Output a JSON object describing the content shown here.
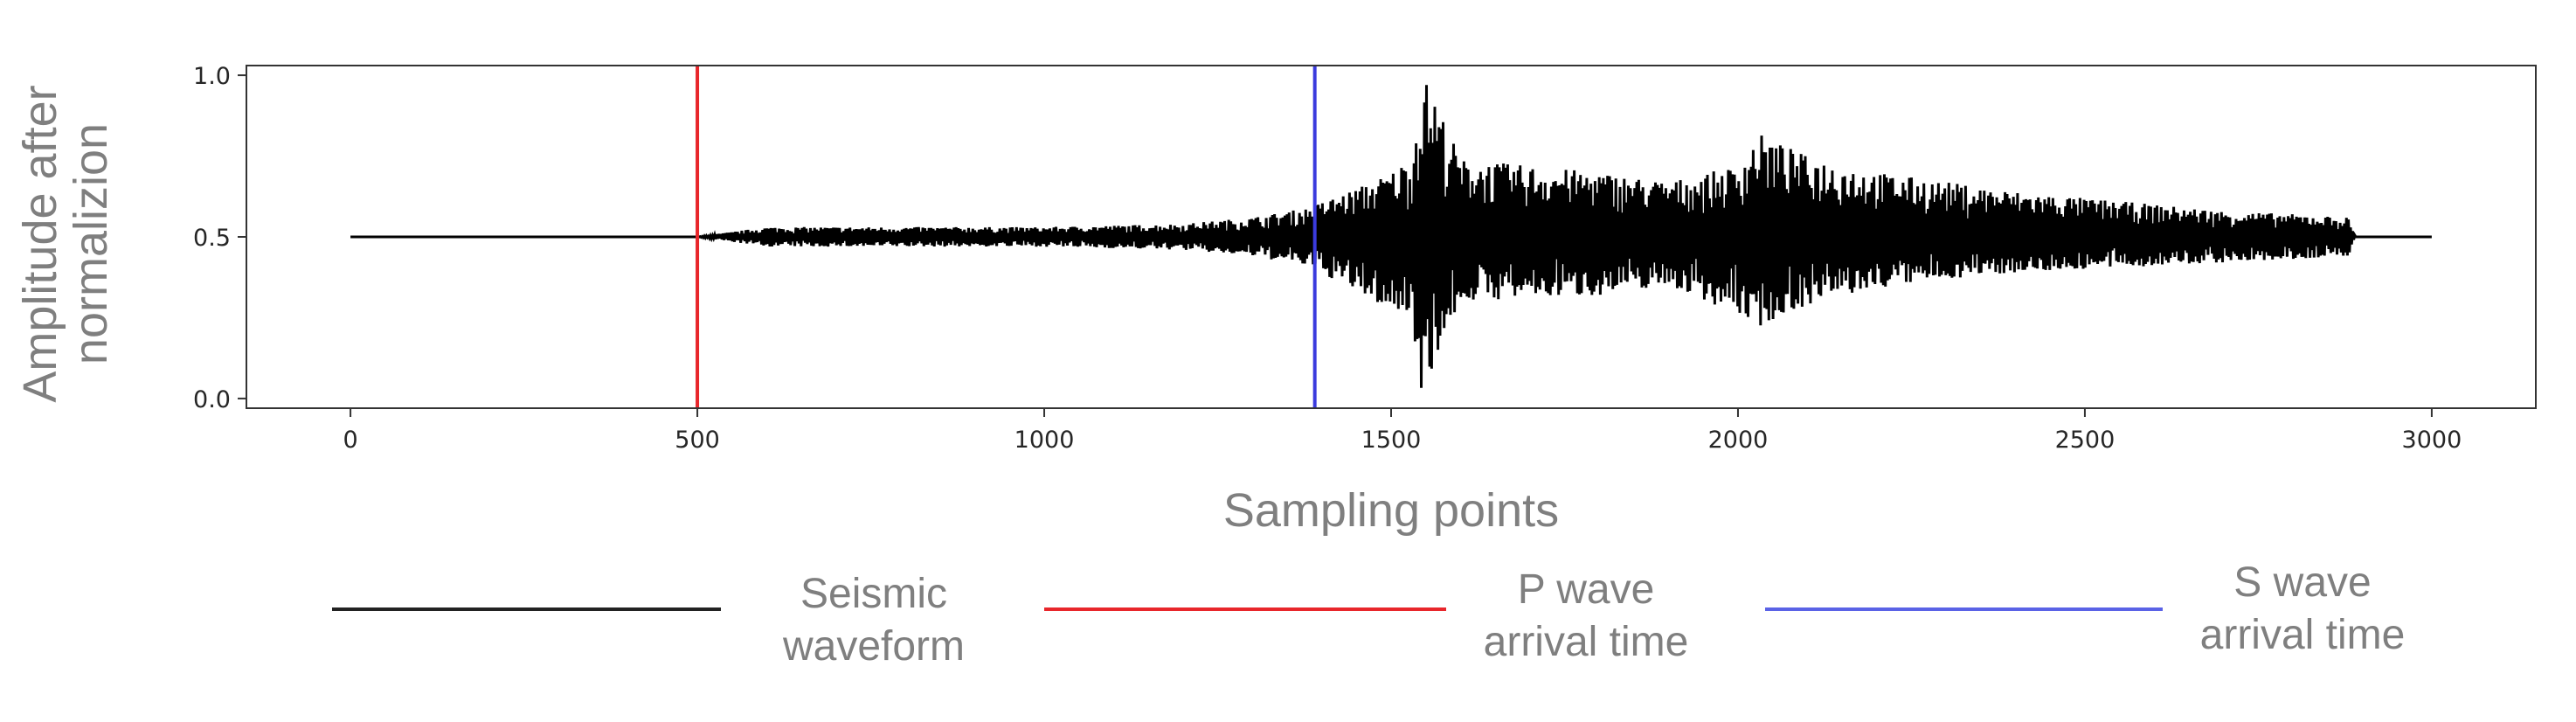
{
  "chart_data": {
    "type": "line",
    "xlabel": "Sampling points",
    "ylabel": "Amplitude after\nnormalizion",
    "xlim": [
      -150,
      3150
    ],
    "ylim": [
      -0.03,
      1.03
    ],
    "xticks": [
      0,
      500,
      1000,
      1500,
      2000,
      2500,
      3000
    ],
    "yticks": [
      0.0,
      0.5,
      1.0
    ],
    "xtick_labels": [
      "0",
      "500",
      "1000",
      "1500",
      "2000",
      "2500",
      "3000"
    ],
    "ytick_labels": [
      "0.0",
      "0.5",
      "1.0"
    ],
    "grid": false,
    "legend_position": "bottom",
    "series": [
      {
        "name": "Seismic\nwaveform",
        "color": "#000000",
        "signal_range": [
          0,
          3000
        ],
        "baseline": 0.5,
        "envelope": {
          "x": [
            0,
            500,
            600,
            800,
            1000,
            1200,
            1300,
            1380,
            1450,
            1500,
            1530,
            1545,
            1560,
            1600,
            1700,
            1800,
            1900,
            2000,
            2030,
            2100,
            2200,
            2300,
            2400,
            2500,
            2600,
            2700,
            2800,
            2880,
            2890,
            3000
          ],
          "upper": [
            0.5,
            0.5,
            0.53,
            0.53,
            0.53,
            0.54,
            0.56,
            0.59,
            0.65,
            0.7,
            0.75,
            1.0,
            0.95,
            0.74,
            0.72,
            0.7,
            0.67,
            0.72,
            0.82,
            0.75,
            0.7,
            0.67,
            0.64,
            0.62,
            0.6,
            0.58,
            0.57,
            0.56,
            0.5,
            0.5
          ],
          "lower": [
            0.5,
            0.5,
            0.47,
            0.47,
            0.47,
            0.46,
            0.44,
            0.41,
            0.33,
            0.27,
            0.25,
            0.0,
            0.1,
            0.3,
            0.31,
            0.32,
            0.35,
            0.26,
            0.22,
            0.29,
            0.34,
            0.37,
            0.39,
            0.4,
            0.41,
            0.42,
            0.43,
            0.44,
            0.5,
            0.5
          ]
        }
      },
      {
        "name": "P wave\narrival time",
        "color": "#e8262b",
        "x": 500
      },
      {
        "name": "S wave\narrival time",
        "color": "#3b3bde",
        "x": 1390
      }
    ]
  }
}
